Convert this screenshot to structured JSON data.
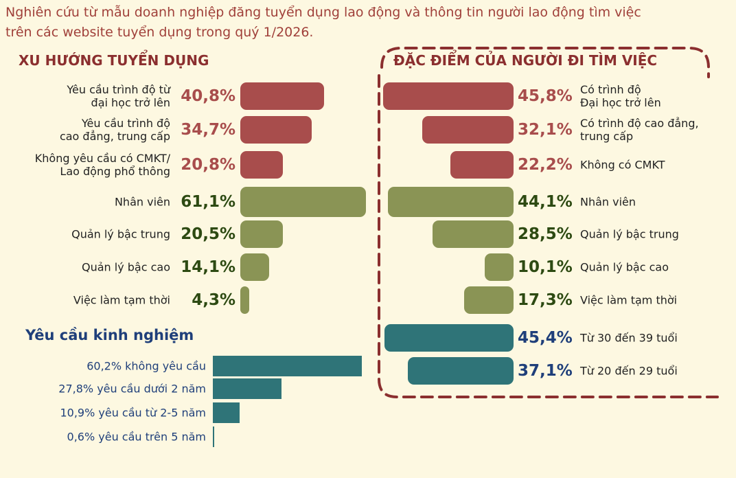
{
  "header": {
    "text": "Nghiên cứu từ mẫu doanh nghiệp đăng tuyển dụng lao động và thông tin người lao động tìm việc\ntrên các website tuyển dụng trong quý 1/2026."
  },
  "chart_data": [
    {
      "type": "bar",
      "title": "XU HƯỚNG TUYỂN DỤNG",
      "categories": [
        "Yêu cầu trình độ từ\nđại học trở lên",
        "Yêu cầu trình độ\ncao đẳng, trung cấp",
        "Không yêu cầu có CMKT/\nLao động phổ thông",
        "Nhân viên",
        "Quản lý bậc trung",
        "Quản lý bậc cao",
        "Việc làm tạm thời"
      ],
      "values": [
        40.8,
        34.7,
        20.8,
        61.1,
        20.5,
        14.1,
        4.3
      ],
      "value_labels": [
        "40,8%",
        "34,7%",
        "20,8%",
        "61,1%",
        "20,5%",
        "14,1%",
        "4,3%"
      ],
      "colors": [
        "#a84d4c",
        "#a84d4c",
        "#a84d4c",
        "#8a9455",
        "#8a9455",
        "#8a9455",
        "#8a9455"
      ],
      "label_colors": [
        "#a84d4c",
        "#a84d4c",
        "#a84d4c",
        "#2d4a12",
        "#2d4a12",
        "#2d4a12",
        "#2d4a12"
      ]
    },
    {
      "type": "bar",
      "title": "ĐẶC ĐIỂM CỦA NGƯỜI ĐI TÌM VIỆC",
      "categories": [
        "Có trình độ\nĐại học trở lên",
        "Có trình độ cao đẳng,\ntrung cấp",
        "Không có CMKT",
        "Nhân viên",
        "Quản lý bậc trung",
        "Quản lý bậc cao",
        "Việc làm tạm thời",
        "Từ 30 đến 39 tuổi",
        "Từ 20 đến 29 tuổi"
      ],
      "values": [
        45.8,
        32.1,
        22.2,
        44.1,
        28.5,
        10.1,
        17.3,
        45.4,
        37.1
      ],
      "value_labels": [
        "45,8%",
        "32,1%",
        "22,2%",
        "44,1%",
        "28,5%",
        "10,1%",
        "17,3%",
        "45,4%",
        "37,1%"
      ],
      "colors": [
        "#a84d4c",
        "#a84d4c",
        "#a84d4c",
        "#8a9455",
        "#8a9455",
        "#8a9455",
        "#8a9455",
        "#2f7478",
        "#2f7478"
      ],
      "label_colors": [
        "#a84d4c",
        "#a84d4c",
        "#a84d4c",
        "#2d4a12",
        "#2d4a12",
        "#2d4a12",
        "#2d4a12",
        "#1f3f7a",
        "#1f3f7a"
      ]
    },
    {
      "type": "bar",
      "title": "Yêu cầu kinh nghiệm",
      "categories": [
        "60,2% không yêu cầu",
        "27,8% yêu cầu dưới  2 năm",
        "10,9% yêu cầu từ 2-5 năm",
        "0,6% yêu cầu trên 5 năm"
      ],
      "values": [
        60.2,
        27.8,
        10.9,
        0.6
      ],
      "color": "#2f7478"
    }
  ]
}
